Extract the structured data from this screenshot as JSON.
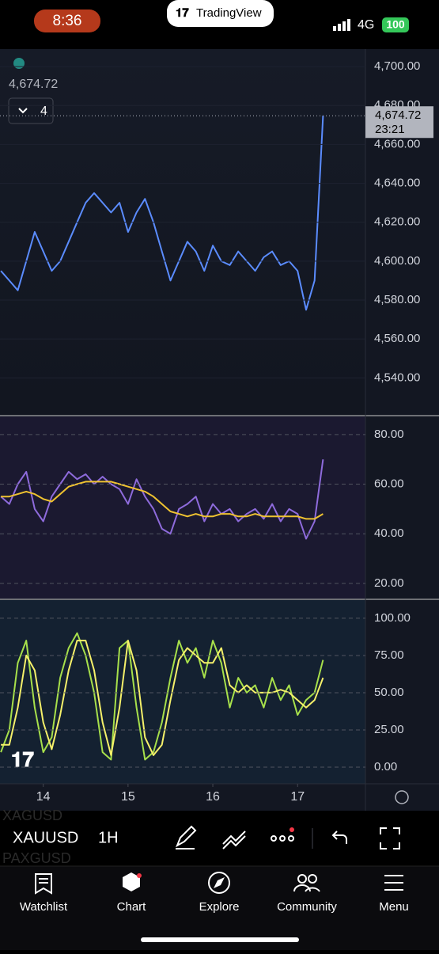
{
  "status_bar": {
    "time": "8:36",
    "network": "4G",
    "battery": "100"
  },
  "app_badge": "TradingView",
  "chart": {
    "legend_value": "4,674.72",
    "indicator_count": "4",
    "last_price": {
      "value": 4674.72,
      "label": "4,674.72"
    },
    "countdown": "23:21",
    "x": [
      13.5,
      13.6,
      13.7,
      13.8,
      13.9,
      14.0,
      14.1,
      14.2,
      14.3,
      14.4,
      14.5,
      14.6,
      14.7,
      14.8,
      14.9,
      15.0,
      15.1,
      15.2,
      15.3,
      15.4,
      15.5,
      15.6,
      15.7,
      15.8,
      15.9,
      16.0,
      16.1,
      16.2,
      16.3,
      16.4,
      16.5,
      16.6,
      16.7,
      16.8,
      16.9,
      17.0,
      17.1,
      17.2,
      17.3
    ],
    "xlim": [
      13.49,
      17.8
    ],
    "xticks": [
      14,
      15,
      16,
      17
    ],
    "price_panel": {
      "type": "line",
      "ylim": [
        4521,
        4709
      ],
      "yticks": [
        {
          "value": 4540,
          "label": "4,540.00"
        },
        {
          "value": 4560,
          "label": "4,560.00"
        },
        {
          "value": 4580,
          "label": "4,580.00"
        },
        {
          "value": 4600,
          "label": "4,600.00"
        },
        {
          "value": 4620,
          "label": "4,620.00"
        },
        {
          "value": 4640,
          "label": "4,640.00"
        },
        {
          "value": 4660,
          "label": "4,660.00"
        },
        {
          "value": 4680,
          "label": "4,680.00"
        },
        {
          "value": 4700,
          "label": "4,700.00"
        }
      ],
      "series": [
        {
          "color": "#5b8cff",
          "values": [
            4595,
            4590,
            4585,
            4600,
            4615,
            4605,
            4595,
            4600,
            4610,
            4620,
            4630,
            4635,
            4630,
            4625,
            4630,
            4615,
            4625,
            4632,
            4620,
            4605,
            4590,
            4600,
            4610,
            4605,
            4595,
            4608,
            4600,
            4598,
            4605,
            4600,
            4595,
            4602,
            4605,
            4598,
            4600,
            4595,
            4575,
            4590,
            4674.72
          ]
        }
      ]
    },
    "rsi_panel": {
      "type": "line",
      "ylim": [
        13.9,
        87.3
      ],
      "yticks": [
        {
          "value": 20,
          "label": "20.00"
        },
        {
          "value": 40,
          "label": "40.00"
        },
        {
          "value": 60,
          "label": "60.00"
        },
        {
          "value": 80,
          "label": "80.00"
        }
      ],
      "series": [
        {
          "color": "#8e6bdc",
          "values": [
            55,
            52,
            60,
            65,
            50,
            45,
            55,
            60,
            65,
            62,
            64,
            60,
            63,
            60,
            58,
            52,
            62,
            55,
            50,
            42,
            40,
            50,
            52,
            55,
            45,
            52,
            48,
            50,
            45,
            48,
            50,
            46,
            52,
            45,
            50,
            48,
            38,
            45,
            70
          ]
        },
        {
          "color": "#f0c330",
          "values": [
            55,
            55,
            56,
            57,
            56,
            54,
            53,
            56,
            59,
            60,
            61,
            61,
            61,
            61,
            60,
            59,
            58,
            57,
            55,
            52,
            49,
            48,
            47,
            48,
            47,
            47,
            48,
            48,
            47,
            47,
            48,
            47,
            47,
            47,
            47,
            47,
            46,
            46,
            48
          ]
        }
      ]
    },
    "stoch_panel": {
      "type": "line",
      "ylim": [
        -11.2,
        112.2
      ],
      "yticks": [
        {
          "value": 0,
          "label": "0.00"
        },
        {
          "value": 25,
          "label": "25.00"
        },
        {
          "value": 50,
          "label": "50.00"
        },
        {
          "value": 75,
          "label": "75.00"
        },
        {
          "value": 100,
          "label": "100.00"
        }
      ],
      "series": [
        {
          "color": "#a7e04b",
          "values": [
            10,
            25,
            70,
            85,
            40,
            10,
            20,
            60,
            80,
            90,
            75,
            50,
            10,
            5,
            80,
            85,
            40,
            5,
            10,
            30,
            60,
            85,
            70,
            80,
            60,
            85,
            70,
            40,
            60,
            50,
            55,
            40,
            60,
            45,
            55,
            35,
            45,
            50,
            72
          ]
        },
        {
          "color": "#f5f06a",
          "values": [
            15,
            15,
            40,
            75,
            65,
            30,
            12,
            35,
            65,
            85,
            85,
            65,
            30,
            8,
            40,
            85,
            65,
            20,
            8,
            15,
            45,
            72,
            80,
            75,
            70,
            70,
            80,
            55,
            50,
            55,
            50,
            50,
            50,
            52,
            50,
            45,
            40,
            45,
            60
          ]
        }
      ]
    }
  },
  "toolbar": {
    "symbol": "XAUUSD",
    "interval": "1H",
    "other_symbols": [
      "XAGUSD",
      "PAXGUSD"
    ]
  },
  "tabs": [
    "Watchlist",
    "Chart",
    "Explore",
    "Community",
    "Menu"
  ]
}
